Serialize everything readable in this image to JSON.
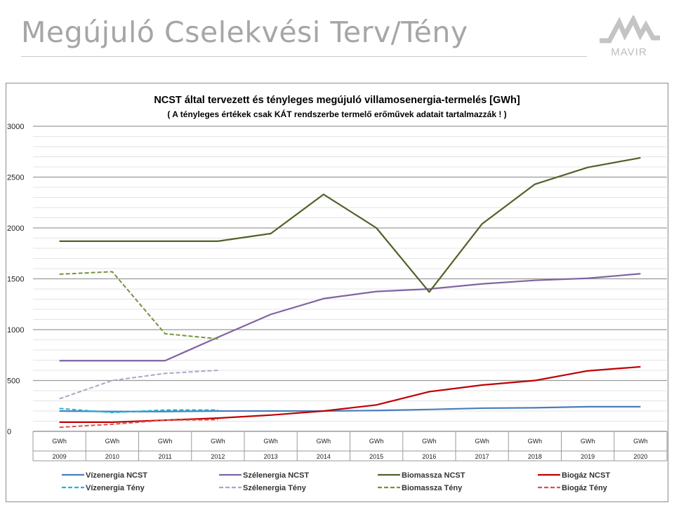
{
  "header": {
    "title": "Megújuló Cselekvési Terv/Tény",
    "logo_text": "MAVIR"
  },
  "chart_data": {
    "type": "line",
    "title": "NCST által tervezett és tényleges megújuló villamosenergia-termelés  [GWh]",
    "subtitle": "( A tényleges értékek csak KÁT  rendszerbe termelő erőművek adatait tartalmazzák ! )",
    "unit_row": [
      "GWh",
      "GWh",
      "GWh",
      "GWh",
      "GWh",
      "GWh",
      "GWh",
      "GWh",
      "GWh",
      "GWh",
      "GWh",
      "GWh"
    ],
    "categories": [
      "2009",
      "2010",
      "2011",
      "2012",
      "2013",
      "2014",
      "2015",
      "2016",
      "2017",
      "2018",
      "2019",
      "2020"
    ],
    "ylim": [
      0,
      3000
    ],
    "yticks": [
      0,
      500,
      1000,
      1500,
      2000,
      2500,
      3000
    ],
    "grid": true,
    "legend_position": "bottom",
    "series": [
      {
        "name": "Vízenergia NCST",
        "color": "#4a7ebb",
        "dash": "solid",
        "values": [
          200,
          195,
          195,
          200,
          200,
          200,
          205,
          215,
          228,
          232,
          242,
          242
        ]
      },
      {
        "name": "Szélenergia NCST",
        "color": "#8064a2",
        "dash": "solid",
        "values": [
          695,
          695,
          695,
          925,
          1150,
          1305,
          1375,
          1400,
          1450,
          1485,
          1505,
          1550
        ]
      },
      {
        "name": "Biomassza NCST",
        "color": "#4f6228",
        "dash": "solid",
        "values": [
          1870,
          1870,
          1870,
          1870,
          1945,
          2330,
          2000,
          1370,
          2040,
          2430,
          2595,
          2690
        ]
      },
      {
        "name": "Biogáz NCST",
        "color": "#c00000",
        "dash": "solid",
        "values": [
          90,
          90,
          110,
          130,
          160,
          200,
          260,
          390,
          455,
          500,
          595,
          635
        ]
      },
      {
        "name": "Vízenergia Tény",
        "color": "#1fb6d8",
        "dash": "dashed",
        "values": [
          225,
          185,
          210,
          210,
          null,
          null,
          null,
          null,
          null,
          null,
          null,
          null
        ]
      },
      {
        "name": "Szélenergia Tény",
        "color": "#b3a2c7",
        "dash": "dashed",
        "values": [
          320,
          500,
          570,
          600,
          null,
          null,
          null,
          null,
          null,
          null,
          null,
          null
        ]
      },
      {
        "name": "Biomassza Tény",
        "color": "#77933c",
        "dash": "dashed",
        "values": [
          1545,
          1570,
          960,
          910,
          null,
          null,
          null,
          null,
          null,
          null,
          null,
          null
        ]
      },
      {
        "name": "Biogáz Tény",
        "color": "#d9534f",
        "dash": "dashed",
        "values": [
          40,
          70,
          110,
          115,
          null,
          null,
          null,
          null,
          null,
          null,
          null,
          null
        ]
      }
    ]
  }
}
